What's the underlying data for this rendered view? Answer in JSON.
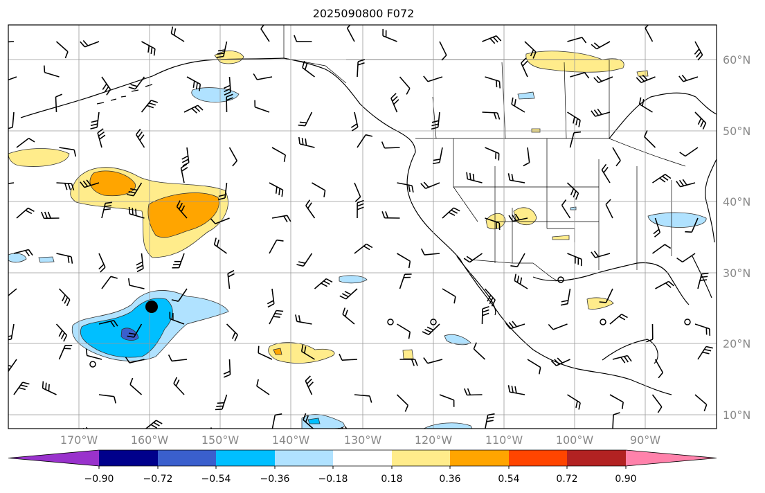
{
  "title": "2025090800 F072",
  "lat_labels": [
    "60°N",
    "50°N",
    "40°N",
    "30°N",
    "20°N",
    "10°N"
  ],
  "lon_labels": [
    "170°W",
    "160°W",
    "150°W",
    "140°W",
    "130°W",
    "120°W",
    "110°W",
    "100°W",
    "90°W"
  ],
  "colorbar": {
    "ticks": [
      "−0.90",
      "−0.72",
      "−0.54",
      "−0.36",
      "−0.18",
      "0.18",
      "0.36",
      "0.54",
      "0.72",
      "0.90"
    ],
    "colors": [
      "#9932cc",
      "#00008b",
      "#3a5fcd",
      "#00bfff",
      "#b0e2ff",
      "#ffffff",
      "#ffec8b",
      "#ffa500",
      "#ff4500",
      "#b22222",
      "#ff82ab"
    ]
  },
  "colors": {
    "grid": "#999999",
    "coast": "#000000",
    "label": "#888888"
  }
}
